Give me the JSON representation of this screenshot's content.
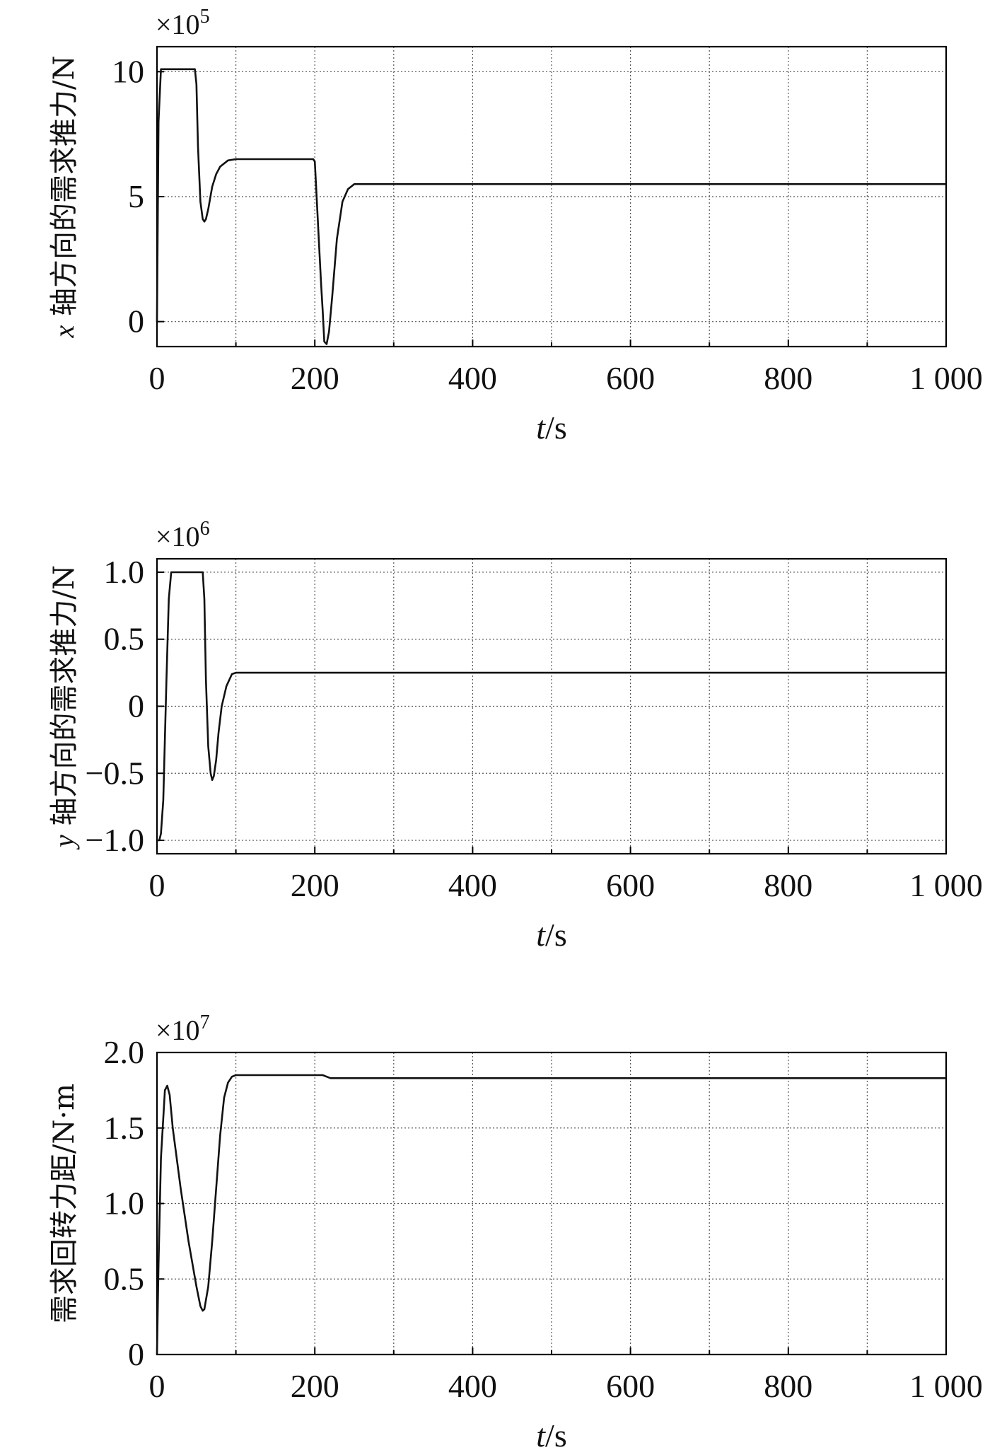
{
  "chart_data": [
    {
      "type": "line",
      "xlabel_italic": "t",
      "xlabel_unit": "/s",
      "ylabel_var": "x",
      "ylabel": " 轴方向的需求推力/N",
      "multiplier": "×10",
      "multiplier_exp": "5",
      "xlim": [
        0,
        1000
      ],
      "ylim": [
        -1,
        11
      ],
      "xticks": [
        0,
        200,
        400,
        600,
        800,
        1000
      ],
      "xtick_labels": [
        "0",
        "200",
        "400",
        "600",
        "800",
        "1 000"
      ],
      "yticks": [
        0,
        5,
        10
      ],
      "ytick_labels": [
        "0",
        "5",
        "10"
      ],
      "grid": true,
      "series": [
        {
          "x": [
            0,
            2,
            5,
            10,
            48,
            50,
            52,
            55,
            58,
            60,
            62,
            65,
            70,
            75,
            80,
            90,
            100,
            198,
            200,
            202,
            205,
            208,
            210,
            212,
            215,
            218,
            222,
            228,
            235,
            242,
            250,
            1000
          ],
          "y": [
            0,
            8,
            10.1,
            10.1,
            10.1,
            9.5,
            7,
            4.8,
            4.1,
            4.0,
            4.1,
            4.5,
            5.4,
            5.9,
            6.2,
            6.45,
            6.5,
            6.5,
            6.4,
            5.2,
            3.3,
            1.5,
            0.4,
            -0.8,
            -0.9,
            -0.4,
            1.0,
            3.3,
            4.8,
            5.3,
            5.5,
            5.5
          ]
        }
      ]
    },
    {
      "type": "line",
      "xlabel_italic": "t",
      "xlabel_unit": "/s",
      "ylabel_var": "y",
      "ylabel": " 轴方向的需求推力/N",
      "multiplier": "×10",
      "multiplier_exp": "6",
      "xlim": [
        0,
        1000
      ],
      "ylim": [
        -1.1,
        1.1
      ],
      "xticks": [
        0,
        200,
        400,
        600,
        800,
        1000
      ],
      "xtick_labels": [
        "0",
        "200",
        "400",
        "600",
        "800",
        "1 000"
      ],
      "yticks": [
        -1.0,
        -0.5,
        0,
        0.5,
        1.0
      ],
      "ytick_labels": [
        "−1.0",
        "−0.5",
        "0",
        "0.5",
        "1.0"
      ],
      "grid": true,
      "series": [
        {
          "x": [
            0,
            3,
            5,
            8,
            12,
            15,
            18,
            20,
            58,
            60,
            62,
            65,
            68,
            70,
            72,
            75,
            78,
            82,
            88,
            95,
            100,
            1000
          ],
          "y": [
            -1.0,
            -1.0,
            -0.95,
            -0.7,
            0.2,
            0.8,
            1.0,
            1.0,
            1.0,
            0.8,
            0.2,
            -0.3,
            -0.5,
            -0.55,
            -0.52,
            -0.4,
            -0.2,
            0.0,
            0.15,
            0.24,
            0.25,
            0.25
          ]
        }
      ]
    },
    {
      "type": "line",
      "xlabel_italic": "t",
      "xlabel_unit": "/s",
      "ylabel_var": "",
      "ylabel": "需求回转力距/N·m",
      "multiplier": "×10",
      "multiplier_exp": "7",
      "xlim": [
        0,
        1000
      ],
      "ylim": [
        0,
        2.0
      ],
      "xticks": [
        0,
        200,
        400,
        600,
        800,
        1000
      ],
      "xtick_labels": [
        "0",
        "200",
        "400",
        "600",
        "800",
        "1 000"
      ],
      "yticks": [
        0,
        0.5,
        1.0,
        1.5,
        2.0
      ],
      "ytick_labels": [
        "0",
        "0.5",
        "1.0",
        "1.5",
        "2.0"
      ],
      "grid": true,
      "series": [
        {
          "x": [
            0,
            2,
            5,
            10,
            13,
            16,
            20,
            30,
            40,
            50,
            55,
            58,
            60,
            65,
            70,
            75,
            80,
            85,
            90,
            95,
            100,
            200,
            210,
            215,
            220,
            1000
          ],
          "y": [
            0,
            0.6,
            1.3,
            1.75,
            1.78,
            1.72,
            1.5,
            1.1,
            0.75,
            0.45,
            0.32,
            0.29,
            0.3,
            0.45,
            0.75,
            1.1,
            1.45,
            1.7,
            1.8,
            1.84,
            1.85,
            1.85,
            1.85,
            1.84,
            1.83,
            1.83
          ]
        }
      ]
    }
  ]
}
